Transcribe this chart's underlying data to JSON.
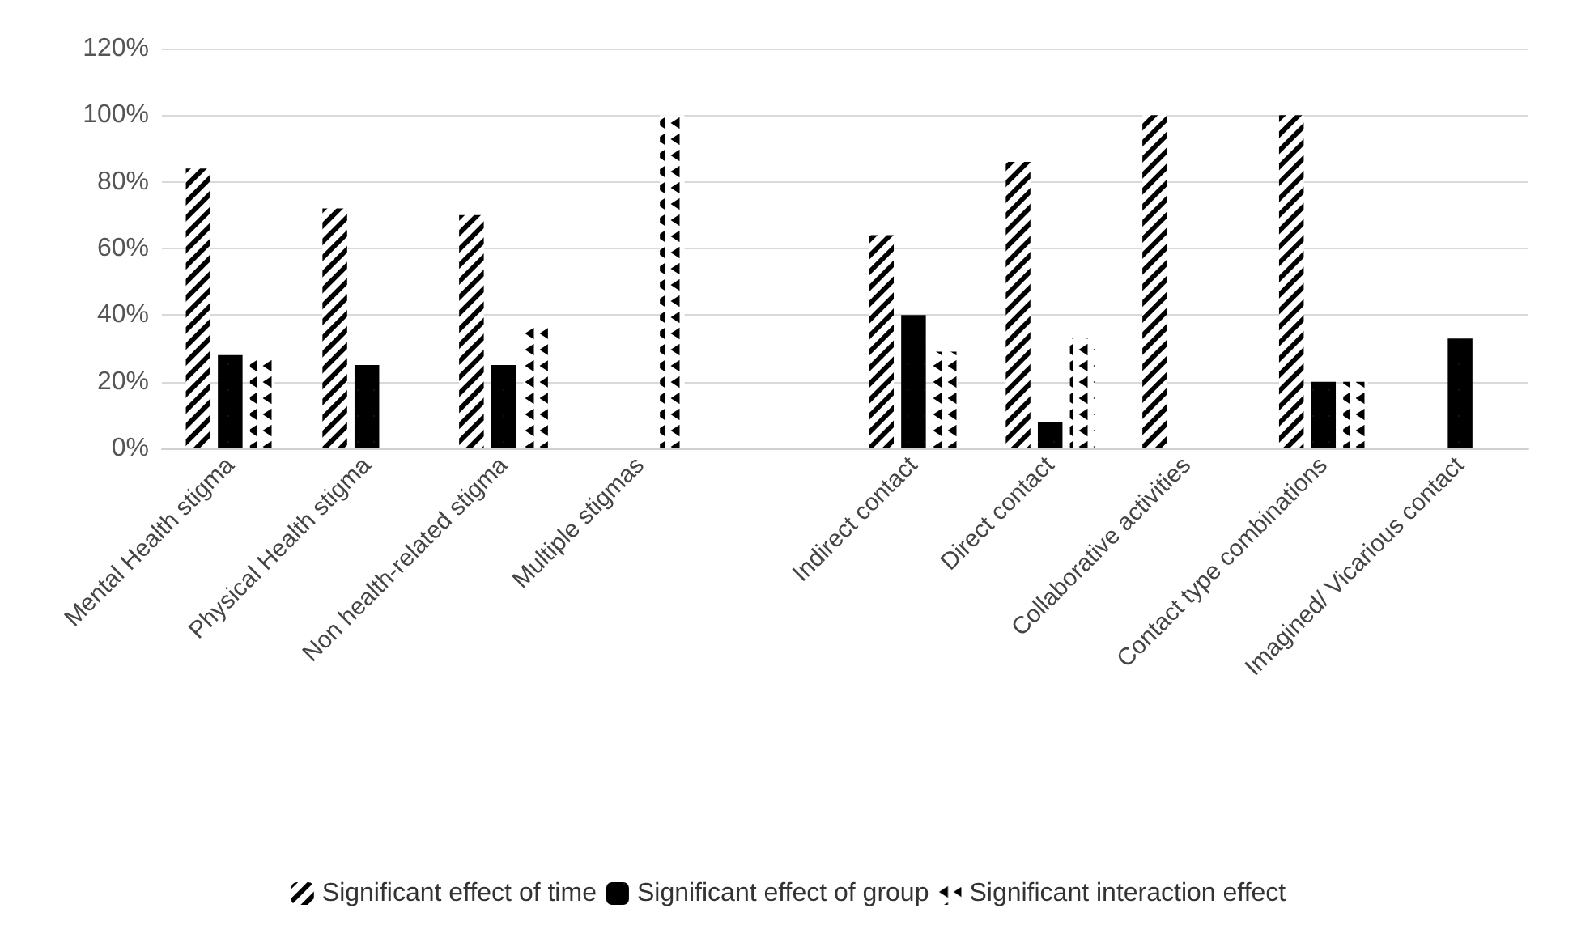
{
  "chart_data": {
    "type": "bar",
    "categories": [
      "Mental Health stigma",
      "Physical Health stigma",
      "Non health-related stigma",
      "Multiple stigmas",
      null,
      "Indirect contact",
      "Direct contact",
      "Collaborative activities",
      "Contact type combinations",
      "Imagined/ Vicarious contact"
    ],
    "series": [
      {
        "name": "Significant effect of time",
        "color": "#000000",
        "values": [
          84,
          72,
          70,
          null,
          null,
          64,
          86,
          100,
          100,
          null
        ]
      },
      {
        "name": "Significant effect of group",
        "color": "#000000",
        "values": [
          28,
          25,
          25,
          null,
          null,
          40,
          8,
          null,
          20,
          33
        ]
      },
      {
        "name": "Significant interaction effect",
        "color": "#000000",
        "values": [
          27,
          null,
          37,
          100,
          null,
          29,
          33,
          null,
          20,
          null
        ]
      }
    ],
    "ylim": [
      0,
      120
    ],
    "yticks": [
      {
        "value": 0,
        "label": "0%"
      },
      {
        "value": 20,
        "label": "20%"
      },
      {
        "value": 40,
        "label": "40%"
      },
      {
        "value": 60,
        "label": "60%"
      },
      {
        "value": 80,
        "label": "80%"
      },
      {
        "value": 100,
        "label": "100%"
      },
      {
        "value": 120,
        "label": "120%"
      }
    ],
    "grid": "y",
    "legend": "bottom"
  }
}
